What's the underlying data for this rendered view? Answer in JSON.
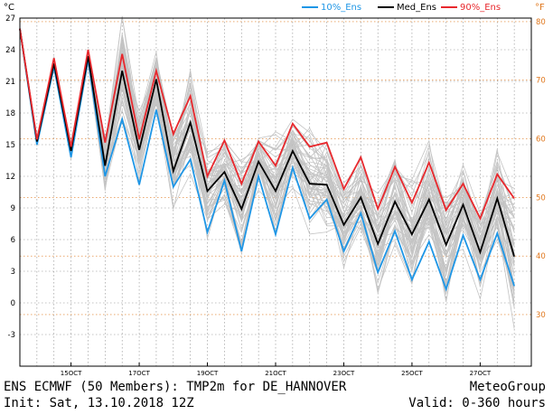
{
  "header": {
    "unit_left": "°C",
    "unit_right": "°F"
  },
  "footer": {
    "title_line": "ENS ECMWF (50 Members): TMP2m for DE_HANNOVER",
    "init_line": "Init: Sat, 13.10.2018 12Z",
    "brand": "MeteoGroup",
    "valid": "Valid: 0-360 hours"
  },
  "colors": {
    "p10": "#1e96e6",
    "median": "#000000",
    "p90": "#e8282d",
    "members": "#c4c4c4",
    "fahrenheit": "#e0781e",
    "grid": "#8c8c8c"
  },
  "chart_data": {
    "type": "line",
    "x_unit": "hours",
    "x_range": [
      0,
      360
    ],
    "ylim": [
      -6,
      27
    ],
    "y_ticks": [
      -3,
      0,
      3,
      6,
      9,
      12,
      15,
      18,
      21,
      24,
      27
    ],
    "y2_ticks_f": [
      30,
      40,
      50,
      60,
      70,
      80
    ],
    "x_ticks": [
      {
        "hour": 36,
        "label": "15OCT"
      },
      {
        "hour": 84,
        "label": "17OCT"
      },
      {
        "hour": 132,
        "label": "19OCT"
      },
      {
        "hour": 180,
        "label": "21OCT"
      },
      {
        "hour": 228,
        "label": "23OCT"
      },
      {
        "hour": 276,
        "label": "25OCT"
      },
      {
        "hour": 324,
        "label": "27OCT"
      }
    ],
    "x": [
      0,
      12,
      24,
      36,
      48,
      60,
      72,
      84,
      96,
      108,
      120,
      132,
      144,
      156,
      168,
      180,
      192,
      204,
      216,
      228,
      240,
      252,
      264,
      276,
      288,
      300,
      312,
      324,
      336,
      348
    ],
    "series": [
      {
        "name": "10%_Ens",
        "key": "p10",
        "values": [
          26,
          15,
          22.4,
          13.8,
          23.1,
          12,
          17.4,
          11.2,
          18.3,
          11,
          13.6,
          6.7,
          11.6,
          4.9,
          12,
          6.5,
          12.8,
          8,
          9.8,
          4.9,
          8.5,
          2.9,
          6.8,
          2.2,
          5.8,
          1.3,
          6.4,
          2.2,
          6.6,
          1.6
        ]
      },
      {
        "name": "Med_Ens",
        "key": "median",
        "values": [
          26,
          15.3,
          22.7,
          14.4,
          23.4,
          13,
          22,
          14.5,
          21.2,
          12.5,
          17.1,
          10.6,
          12.4,
          8.9,
          13.4,
          10.6,
          14.4,
          11.3,
          11.2,
          7.4,
          10,
          5.6,
          9.6,
          6.5,
          9.8,
          5.5,
          9.3,
          4.8,
          9.9,
          4.4
        ]
      },
      {
        "name": "90%_Ens",
        "key": "p90",
        "values": [
          26,
          15.5,
          23.2,
          14.8,
          24,
          15.2,
          23.6,
          15.5,
          22,
          16,
          19.6,
          12,
          15.4,
          11.3,
          15.3,
          13,
          17,
          14.8,
          15.2,
          10.8,
          13.8,
          8.9,
          12.9,
          9.5,
          13.3,
          8.8,
          11.3,
          8,
          12.2,
          9.9
        ]
      }
    ]
  }
}
